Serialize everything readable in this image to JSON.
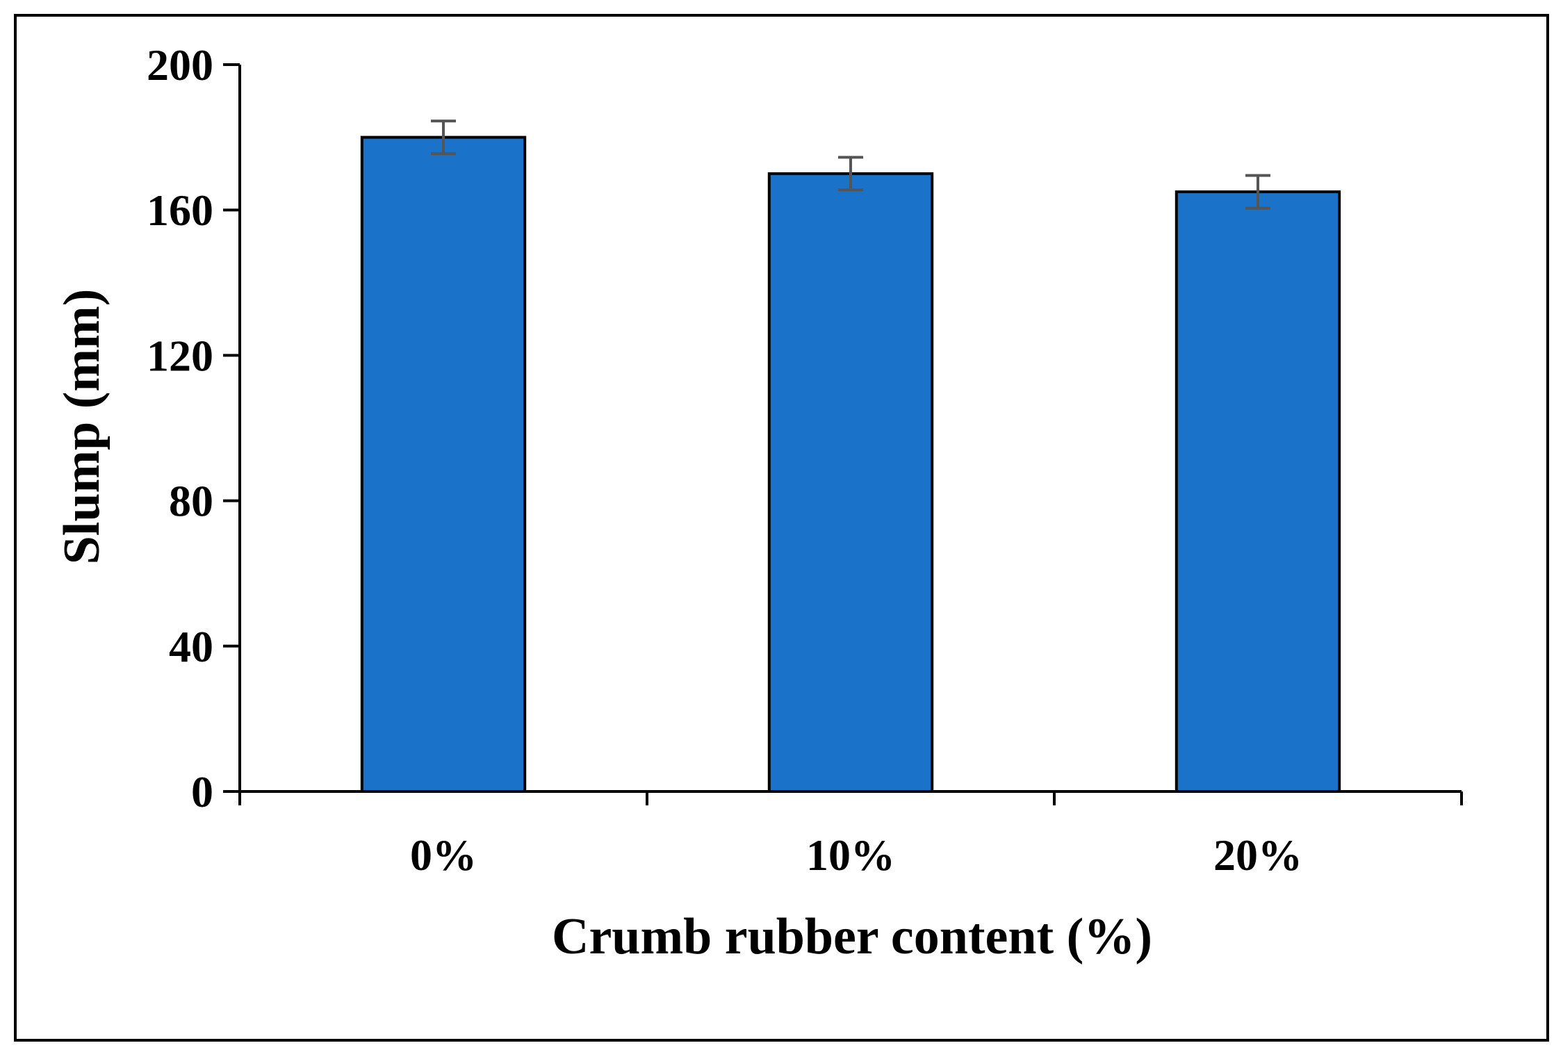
{
  "chart_data": {
    "type": "bar",
    "title": "",
    "categories": [
      "0%",
      "10%",
      "20%"
    ],
    "series": [
      {
        "values": [
          180,
          170,
          165
        ],
        "error": [
          4.5,
          4.5,
          4.5
        ]
      }
    ],
    "xlabel": "Crumb rubber content (%)",
    "ylabel": "Slump (mm)",
    "ylim": [
      0,
      200
    ],
    "yticks": [
      0,
      40,
      80,
      120,
      160,
      200
    ],
    "grid": false,
    "legend": "none",
    "colors": {
      "bar": "#1a73c8",
      "bar_outline": "#000000",
      "error_bar": "#555555",
      "axis": "#000000",
      "frame": "#000000"
    }
  }
}
